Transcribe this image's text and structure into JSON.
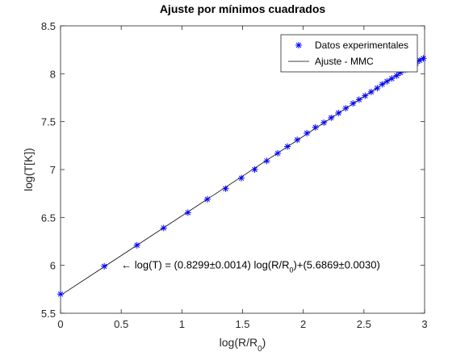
{
  "chart_data": {
    "type": "scatter",
    "title": "Ajuste por mínimos cuadrados",
    "xlabel": "log(R/R",
    "xlabel_sub": "0",
    "xlabel_end": ")",
    "ylabel": "log(T[K])",
    "xlim": [
      0,
      3
    ],
    "ylim": [
      5.5,
      8.5
    ],
    "xticks": [
      0,
      0.5,
      1,
      1.5,
      2,
      2.5,
      3
    ],
    "xtick_labels": [
      "0",
      "0.5",
      "1",
      "1.5",
      "2",
      "2.5",
      "3"
    ],
    "yticks": [
      5.5,
      6,
      6.5,
      7,
      7.5,
      8,
      8.5
    ],
    "ytick_labels": [
      "5.5",
      "6",
      "6.5",
      "7",
      "7.5",
      "8",
      "8.5"
    ],
    "grid": false,
    "legend_position": "top-right",
    "series": [
      {
        "name": "Datos experimentales",
        "kind": "markers",
        "marker": "asterisk",
        "color": "#0000ff",
        "x": [
          0,
          0.36,
          0.63,
          0.85,
          1.05,
          1.21,
          1.36,
          1.49,
          1.6,
          1.7,
          1.79,
          1.87,
          1.95,
          2.03,
          2.1,
          2.17,
          2.23,
          2.29,
          2.35,
          2.41,
          2.46,
          2.51,
          2.56,
          2.61,
          2.65,
          2.69,
          2.73,
          2.77,
          2.8,
          2.84,
          2.87,
          2.9,
          2.93,
          2.96,
          2.99
        ],
        "y": [
          5.7,
          5.99,
          6.21,
          6.39,
          6.55,
          6.69,
          6.8,
          6.91,
          7.0,
          7.09,
          7.17,
          7.24,
          7.31,
          7.38,
          7.44,
          7.49,
          7.54,
          7.59,
          7.64,
          7.69,
          7.73,
          7.77,
          7.81,
          7.85,
          7.89,
          7.92,
          7.95,
          7.98,
          8.01,
          8.04,
          8.06,
          8.09,
          8.11,
          8.14,
          8.16
        ]
      },
      {
        "name": "Ajuste - MMC",
        "kind": "line",
        "color": "#000000",
        "slope": 0.8299,
        "intercept": 5.6869,
        "x_range": [
          0,
          3
        ]
      }
    ],
    "annotation": {
      "text_before": "← log(T) = (0.8299±0.0014) log(R/R",
      "text_sub": "0",
      "text_after": ")+(5.6869±0.0030)",
      "x": 0.5,
      "y": 6.0
    }
  }
}
